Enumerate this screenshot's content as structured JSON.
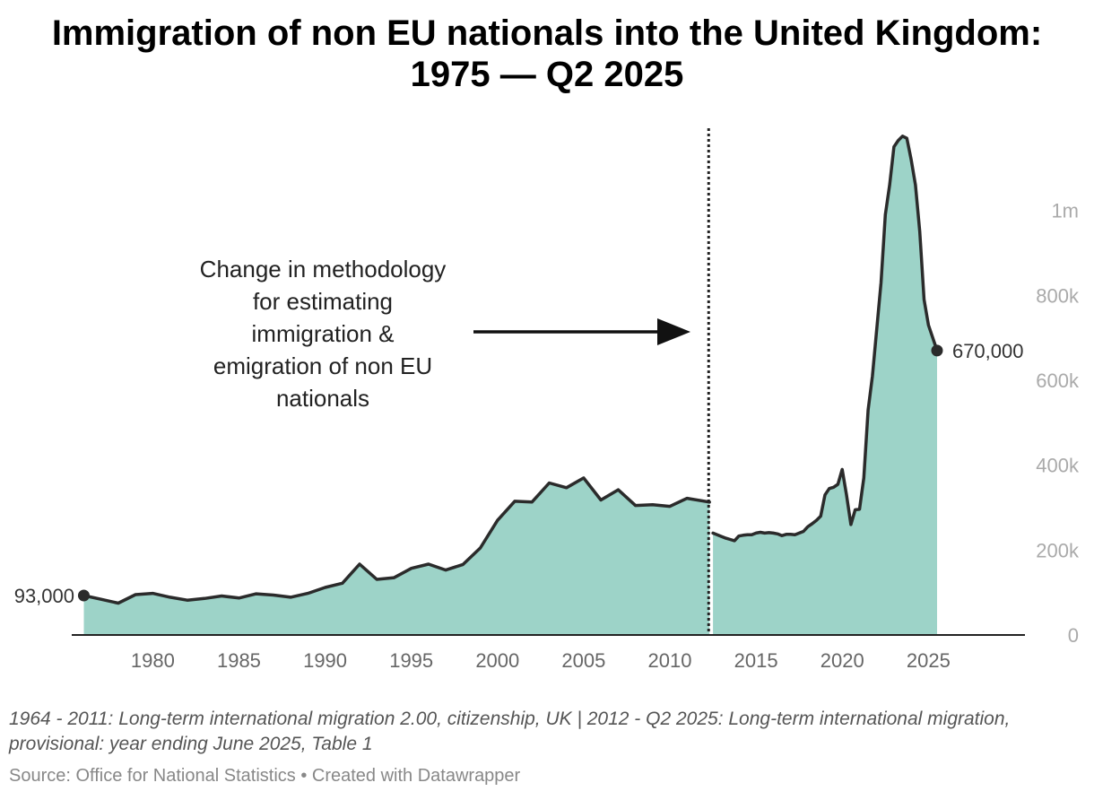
{
  "title": {
    "line1": "Immigration of non EU nationals into the United Kingdom:",
    "line2": "1975 — Q2 2025"
  },
  "footnote": "1964 - 2011: Long-term international migration 2.00, citizenship, UK | 2012 - Q2 2025: Long-term international migration, provisional: year ending June 2025, Table 1",
  "source": "Source: Office for National Statistics • Created with Datawrapper",
  "colors": {
    "fill": "#9dd3c8",
    "line": "#2b2b2b",
    "tick": "#aaaaaa",
    "xtick": "#666666"
  },
  "chart_data": {
    "type": "area",
    "title": "Immigration of non EU nationals into the United Kingdom: 1975 — Q2 2025",
    "xlim": [
      1975.3,
      2030.6
    ],
    "ylim": [
      0,
      1200000
    ],
    "x_ticks": [
      {
        "value": 1980,
        "label": "1980"
      },
      {
        "value": 1985,
        "label": "1985"
      },
      {
        "value": 1990,
        "label": "1990"
      },
      {
        "value": 1995,
        "label": "1995"
      },
      {
        "value": 2000,
        "label": "2000"
      },
      {
        "value": 2005,
        "label": "2005"
      },
      {
        "value": 2010,
        "label": "2010"
      },
      {
        "value": 2015,
        "label": "2015"
      },
      {
        "value": 2020,
        "label": "2020"
      },
      {
        "value": 2025,
        "label": "2025"
      }
    ],
    "y_ticks": [
      {
        "value": 0,
        "label": "0"
      },
      {
        "value": 200000,
        "label": "200k"
      },
      {
        "value": 400000,
        "label": "400k"
      },
      {
        "value": 600000,
        "label": "600k"
      },
      {
        "value": 800000,
        "label": "800k"
      },
      {
        "value": 1000000,
        "label": "1m"
      }
    ],
    "series": [
      {
        "name": "Long-term international migration 2.00 (1975–2011)",
        "x": [
          1976,
          1977,
          1978,
          1979,
          1980,
          1981,
          1982,
          1983,
          1984,
          1985,
          1986,
          1987,
          1988,
          1989,
          1990,
          1991,
          1992,
          1993,
          1994,
          1995,
          1996,
          1997,
          1998,
          1999,
          2000,
          2001,
          2002,
          2003,
          2004,
          2005,
          2006,
          2007,
          2008,
          2009,
          2010,
          2011,
          2012.3
        ],
        "y": [
          93000,
          84000,
          75000,
          95000,
          98000,
          89000,
          82000,
          86000,
          92000,
          87000,
          97000,
          94000,
          89000,
          98000,
          112000,
          122000,
          167000,
          131000,
          135000,
          157000,
          167000,
          153000,
          166000,
          205000,
          270000,
          315000,
          313000,
          358000,
          347000,
          370000,
          318000,
          342000,
          305000,
          307000,
          303000,
          322000,
          313000
        ]
      },
      {
        "name": "Long-term international migration, provisional (2012–Q2 2025)",
        "x": [
          2012.5,
          2013,
          2013.25,
          2013.5,
          2013.75,
          2014,
          2014.25,
          2014.5,
          2014.75,
          2015,
          2015.25,
          2015.5,
          2015.75,
          2016,
          2016.25,
          2016.5,
          2016.75,
          2017,
          2017.25,
          2017.5,
          2017.75,
          2018,
          2018.25,
          2018.5,
          2018.75,
          2019,
          2019.25,
          2019.5,
          2019.75,
          2020,
          2020.25,
          2020.5,
          2020.75,
          2021,
          2021.25,
          2021.5,
          2021.75,
          2022,
          2022.25,
          2022.5,
          2022.75,
          2023,
          2023.25,
          2023.5,
          2023.75,
          2024,
          2024.25,
          2024.5,
          2024.75,
          2025,
          2025.5
        ],
        "y": [
          240000,
          232000,
          228000,
          225000,
          222000,
          233000,
          235000,
          236000,
          236000,
          240000,
          242000,
          240000,
          241000,
          240000,
          238000,
          234000,
          237000,
          237000,
          236000,
          240000,
          244000,
          255000,
          262000,
          270000,
          280000,
          330000,
          345000,
          348000,
          355000,
          390000,
          330000,
          260000,
          295000,
          296000,
          370000,
          530000,
          610000,
          720000,
          830000,
          990000,
          1060000,
          1150000,
          1165000,
          1175000,
          1170000,
          1120000,
          1060000,
          950000,
          790000,
          730000,
          670000
        ]
      }
    ],
    "start_label": "93,000",
    "end_label": "670,000",
    "methodology_break_x": 2012.25,
    "annotation": {
      "line1": "Change in methodology",
      "line2": "for estimating",
      "line3": "immigration &",
      "line4": "emigration of non EU",
      "line5": "nationals"
    }
  }
}
